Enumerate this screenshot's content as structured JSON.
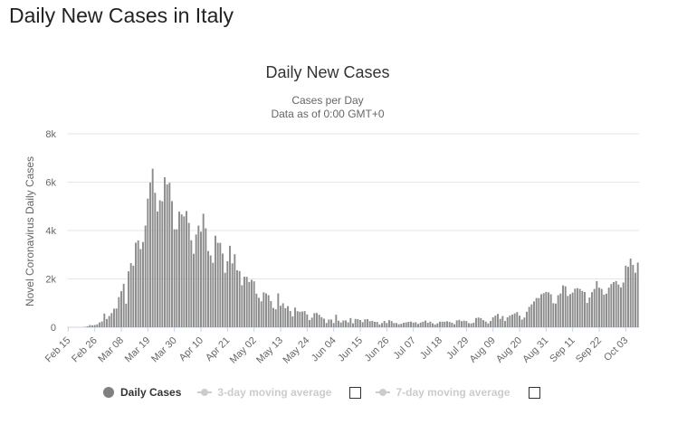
{
  "page": {
    "heading": "Daily New Cases in Italy"
  },
  "colors": {
    "bar": "#8c8c8c",
    "grid": "#e6e6e6",
    "axis_text": "#666666",
    "title_text": "#333333",
    "inactive_legend": "#cccccc"
  },
  "legend": {
    "items": [
      {
        "label": "Daily Cases",
        "active": true,
        "icon": "circle-marker-icon"
      },
      {
        "label": "3-day moving average",
        "active": false,
        "icon": "line-marker-icon",
        "checkbox": true
      },
      {
        "label": "7-day moving average",
        "active": false,
        "icon": "line-marker-icon",
        "checkbox": true
      }
    ]
  },
  "chart_data": {
    "type": "bar",
    "title": "Daily New Cases",
    "subtitle_lines": [
      "Cases per Day",
      "Data as of 0:00 GMT+0"
    ],
    "xlabel": "",
    "ylabel": "Novel Coronavirus Daily Cases",
    "ylim": [
      0,
      8000
    ],
    "yticks": [
      0,
      2000,
      4000,
      6000,
      8000
    ],
    "ytick_labels": [
      "0",
      "2k",
      "4k",
      "6k",
      "8k"
    ],
    "grid": true,
    "legend_position": "bottom",
    "x_start_date": "2020-02-15",
    "xtick_labels": [
      "Feb 15",
      "Feb 26",
      "Mar 08",
      "Mar 19",
      "Mar 30",
      "Apr 10",
      "Apr 21",
      "May 02",
      "May 13",
      "May 24",
      "Jun 04",
      "Jun 15",
      "Jun 26",
      "Jul 07",
      "Jul 18",
      "Jul 29",
      "Aug 09",
      "Aug 20",
      "Aug 31",
      "Sep 11",
      "Sep 22",
      "Oct 03"
    ],
    "series": [
      {
        "name": "Daily Cases",
        "values": [
          0,
          0,
          0,
          0,
          0,
          0,
          0,
          17,
          42,
          93,
          78,
          93,
          123,
          200,
          240,
          566,
          342,
          466,
          587,
          769,
          778,
          1247,
          1492,
          1797,
          977,
          2313,
          2651,
          2547,
          3497,
          3590,
          3233,
          3526,
          4207,
          5322,
          5986,
          6557,
          5560,
          4789,
          5249,
          5210,
          6203,
          5909,
          5974,
          5217,
          4050,
          4053,
          4782,
          4668,
          4585,
          4805,
          4316,
          3599,
          3039,
          3836,
          4204,
          3951,
          4694,
          4092,
          3153,
          2972,
          2667,
          3786,
          3493,
          3491,
          3047,
          2256,
          2729,
          3370,
          2646,
          3021,
          2357,
          2324,
          1739,
          2091,
          2086,
          1872,
          1965,
          1900,
          1389,
          1221,
          1075,
          1444,
          1401,
          1327,
          1083,
          802,
          744,
          1402,
          888,
          992,
          789,
          875,
          675,
          451,
          813,
          665,
          642,
          652,
          669,
          531,
          300,
          397,
          584,
          593,
          516,
          416,
          355,
          178,
          318,
          321,
          177,
          518,
          270,
          197,
          280,
          283,
          202,
          379,
          163,
          346,
          338,
          301,
          210,
          329,
          333,
          251,
          262,
          224,
          221,
          113,
          174,
          259,
          175,
          296,
          255,
          175,
          174,
          126,
          142,
          187,
          201,
          223,
          235,
          192,
          208,
          138,
          193,
          229,
          276,
          188,
          234,
          169,
          114,
          162,
          230,
          230,
          233,
          249,
          219,
          190,
          129,
          282,
          306,
          252,
          275,
          255,
          170,
          159,
          190,
          384,
          402,
          379,
          295,
          238,
          159,
          259,
          412,
          481,
          552,
          347,
          463,
          259,
          412,
          481,
          523,
          574,
          629,
          479,
          320,
          403,
          642,
          845,
          947,
          1071,
          1210,
          1209,
          1367,
          1411,
          1460,
          1444,
          1365,
          996,
          978,
          1326,
          1397,
          1733,
          1694,
          1297,
          1370,
          1434,
          1597,
          1616,
          1585,
          1501,
          1458,
          1008,
          1229,
          1452,
          1585,
          1907,
          1638,
          1587,
          1350,
          1392,
          1640,
          1786,
          1869,
          1912,
          1766,
          1648,
          1850,
          2548,
          2499,
          2843,
          2578,
          2257,
          2677
        ]
      }
    ]
  }
}
